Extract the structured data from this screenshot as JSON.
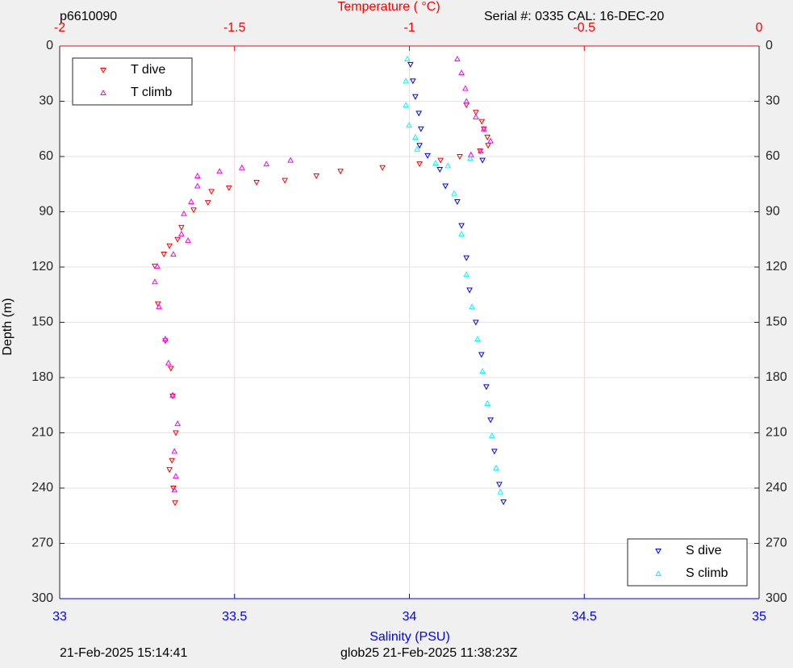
{
  "chart_data": {
    "type": "scatter",
    "title": "Temperature (   °C)",
    "top_left_text": "p6610090",
    "top_right_text": "Serial #: 0335  CAL: 16-DEC-20",
    "xlabel": "Salinity (PSU)",
    "ylabel": "Depth (m)",
    "footer_left": "21-Feb-2025 15:14:41",
    "footer_right": "glob25 21-Feb-2025 11:38:23Z",
    "xlim": [
      33,
      35
    ],
    "xticks": [
      33,
      33.5,
      34,
      34.5,
      35
    ],
    "xcolor": "#0000ff",
    "x2lim": [
      -2,
      0
    ],
    "x2ticks": [
      -2,
      -1.5,
      -1,
      -0.5,
      0
    ],
    "x2color": "#ff0000",
    "ylim": [
      0,
      300
    ],
    "yticks": [
      0,
      30,
      60,
      90,
      120,
      150,
      180,
      210,
      240,
      270,
      300
    ],
    "y_reversed": true,
    "ygrid": true,
    "x2grid": true,
    "series": [
      {
        "name": "T dive",
        "color": "#ff0000",
        "marker": "triangle-down",
        "axis": "x2",
        "legend": "upper left",
        "x": [
          -0.837,
          -0.81,
          -0.793,
          -0.787,
          -0.777,
          -0.775,
          -0.798,
          -0.856,
          -0.911,
          -0.971,
          -1.077,
          -1.197,
          -1.266,
          -1.356,
          -1.437,
          -1.516,
          -1.566,
          -1.576,
          -1.617,
          -1.652,
          -1.663,
          -1.686,
          -1.702,
          -1.728,
          -1.719,
          -1.698,
          -1.682,
          -1.677,
          -1.668,
          -1.679,
          -1.686,
          -1.675,
          -1.67
        ],
        "y": [
          32,
          36,
          41,
          45,
          49.5,
          54,
          57,
          60,
          62,
          64,
          66,
          68,
          70.5,
          73,
          74,
          77,
          79,
          85,
          89,
          98.5,
          105,
          108.5,
          113,
          119.5,
          140,
          160,
          175,
          190,
          210,
          225,
          230,
          240,
          248
        ]
      },
      {
        "name": "T climb",
        "color": "#ff00ff",
        "marker": "triangle-up",
        "axis": "x2",
        "legend": "upper left",
        "x": [
          -0.863,
          -0.851,
          -0.84,
          -0.837,
          -0.81,
          -0.787,
          -0.768,
          -0.796,
          -0.824,
          -1.34,
          -1.409,
          -1.479,
          -1.543,
          -1.606,
          -1.606,
          -1.624,
          -1.645,
          -1.652,
          -1.633,
          -1.675,
          -1.721,
          -1.728,
          -1.716,
          -1.698,
          -1.689,
          -1.677,
          -1.663,
          -1.672,
          -1.668,
          -1.672
        ],
        "y": [
          7,
          14.5,
          23,
          30,
          38.5,
          45,
          51.5,
          57,
          59,
          62,
          64,
          66,
          68,
          70.5,
          76,
          84.5,
          91,
          102,
          105.5,
          113,
          119.5,
          128,
          141.5,
          159,
          172,
          189.5,
          205,
          220,
          233.5,
          241
        ]
      },
      {
        "name": "S dive",
        "color": "#0000ff",
        "marker": "triangle-down",
        "legend": "lower right",
        "x": [
          34.003,
          34.01,
          34.017,
          34.027,
          34.033,
          34.029,
          34.052,
          34.209,
          34.087,
          34.103,
          34.137,
          34.149,
          34.163,
          34.172,
          34.19,
          34.206,
          34.22,
          34.232,
          34.243,
          34.257,
          34.269
        ],
        "y": [
          10,
          19,
          27.5,
          36.5,
          45,
          54,
          59.5,
          62,
          67,
          76,
          84.5,
          97.5,
          115,
          132.5,
          150,
          167.5,
          185,
          203,
          220,
          238,
          247.5
        ]
      },
      {
        "name": "S climb",
        "color": "#00ffff",
        "marker": "triangle-up",
        "legend": "lower right",
        "x": [
          33.994,
          33.99,
          33.99,
          33.999,
          34.017,
          34.022,
          34.174,
          34.075,
          34.11,
          34.128,
          34.149,
          34.163,
          34.179,
          34.195,
          34.209,
          34.223,
          34.236,
          34.248,
          34.26
        ],
        "y": [
          7,
          19,
          32,
          43,
          49.5,
          56,
          61,
          63.5,
          65,
          80,
          102,
          124,
          141.5,
          159,
          176.5,
          194,
          211.5,
          229,
          242
        ]
      }
    ]
  }
}
